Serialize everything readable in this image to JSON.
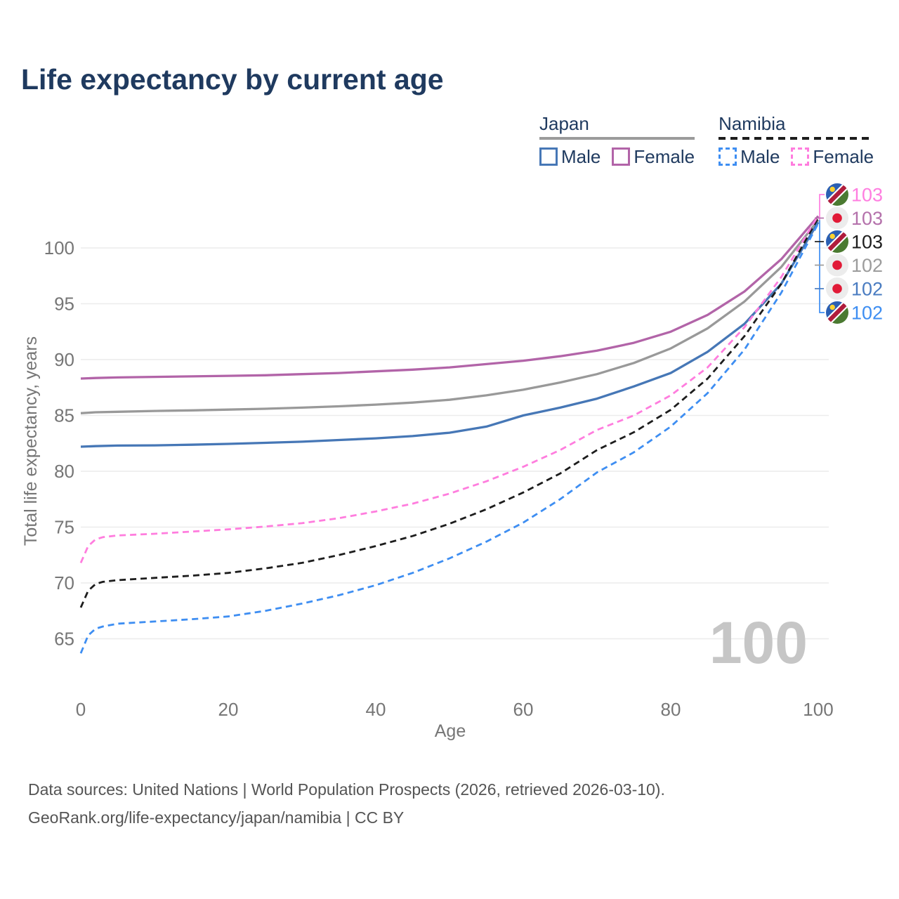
{
  "title": "Life expectancy by current age",
  "legend": {
    "groups": [
      {
        "country": "Japan",
        "underline_color": "#9b9b9b",
        "underline_dashed": false,
        "items": [
          {
            "label": "Male",
            "color": "#4677b6",
            "dashed": false
          },
          {
            "label": "Female",
            "color": "#b264a8",
            "dashed": false
          }
        ]
      },
      {
        "country": "Namibia",
        "underline_color": "#1d1d1d",
        "underline_dashed": true,
        "items": [
          {
            "label": "Male",
            "color": "#3e8ef2",
            "dashed": true
          },
          {
            "label": "Female",
            "color": "#ff7dde",
            "dashed": true
          }
        ]
      }
    ]
  },
  "chart_data": {
    "type": "line",
    "title": "Life expectancy by current age",
    "xlabel": "Age",
    "ylabel": "Total life expectancy, years",
    "xlim": [
      0,
      100
    ],
    "ylim": [
      62,
      104
    ],
    "x_ticks": [
      0,
      20,
      40,
      60,
      80,
      100
    ],
    "y_ticks": [
      65,
      70,
      75,
      80,
      85,
      90,
      95,
      100
    ],
    "grid": "horizontal",
    "legend_position": "top-right",
    "frame_label": "100",
    "converge_value": 102.5,
    "series": [
      {
        "name": "Japan Both sexes",
        "country": "Japan",
        "group": "Both sexes",
        "color": "#999999",
        "dashed": false,
        "points": [
          [
            0,
            85.2
          ],
          [
            2,
            85.28
          ],
          [
            5,
            85.33
          ],
          [
            10,
            85.4
          ],
          [
            15,
            85.45
          ],
          [
            20,
            85.52
          ],
          [
            25,
            85.6
          ],
          [
            30,
            85.7
          ],
          [
            35,
            85.82
          ],
          [
            40,
            85.97
          ],
          [
            45,
            86.15
          ],
          [
            50,
            86.4
          ],
          [
            55,
            86.8
          ],
          [
            60,
            87.3
          ],
          [
            65,
            87.95
          ],
          [
            70,
            88.7
          ],
          [
            75,
            89.7
          ],
          [
            80,
            91.0
          ],
          [
            85,
            92.8
          ],
          [
            90,
            95.2
          ],
          [
            95,
            98.3
          ],
          [
            100,
            102.5
          ]
        ]
      },
      {
        "name": "Japan Female",
        "country": "Japan",
        "group": "Female",
        "color": "#b264a8",
        "dashed": false,
        "points": [
          [
            0,
            88.3
          ],
          [
            2,
            88.35
          ],
          [
            5,
            88.4
          ],
          [
            10,
            88.45
          ],
          [
            15,
            88.5
          ],
          [
            20,
            88.55
          ],
          [
            25,
            88.6
          ],
          [
            30,
            88.7
          ],
          [
            35,
            88.8
          ],
          [
            40,
            88.95
          ],
          [
            45,
            89.1
          ],
          [
            50,
            89.3
          ],
          [
            55,
            89.6
          ],
          [
            60,
            89.9
          ],
          [
            65,
            90.3
          ],
          [
            70,
            90.8
          ],
          [
            75,
            91.5
          ],
          [
            80,
            92.5
          ],
          [
            85,
            94.0
          ],
          [
            90,
            96.1
          ],
          [
            95,
            99.0
          ],
          [
            100,
            102.85
          ]
        ]
      },
      {
        "name": "Japan Male",
        "country": "Japan",
        "group": "Male",
        "color": "#4677b6",
        "dashed": false,
        "points": [
          [
            0,
            82.2
          ],
          [
            2,
            82.25
          ],
          [
            5,
            82.3
          ],
          [
            10,
            82.32
          ],
          [
            15,
            82.38
          ],
          [
            20,
            82.45
          ],
          [
            25,
            82.55
          ],
          [
            30,
            82.65
          ],
          [
            35,
            82.8
          ],
          [
            40,
            82.95
          ],
          [
            45,
            83.15
          ],
          [
            50,
            83.45
          ],
          [
            55,
            84.0
          ],
          [
            60,
            85.0
          ],
          [
            65,
            85.7
          ],
          [
            70,
            86.5
          ],
          [
            75,
            87.6
          ],
          [
            80,
            88.8
          ],
          [
            85,
            90.7
          ],
          [
            90,
            93.2
          ],
          [
            95,
            96.8
          ],
          [
            100,
            102.3
          ]
        ]
      },
      {
        "name": "Namibia Male",
        "country": "Namibia",
        "group": "Male",
        "color": "#3e8ef2",
        "dashed": true,
        "points": [
          [
            0,
            63.7
          ],
          [
            1,
            65.3
          ],
          [
            2,
            65.9
          ],
          [
            3,
            66.1
          ],
          [
            5,
            66.35
          ],
          [
            10,
            66.55
          ],
          [
            15,
            66.75
          ],
          [
            20,
            67.0
          ],
          [
            25,
            67.5
          ],
          [
            30,
            68.15
          ],
          [
            35,
            68.9
          ],
          [
            40,
            69.8
          ],
          [
            45,
            70.9
          ],
          [
            50,
            72.2
          ],
          [
            55,
            73.7
          ],
          [
            60,
            75.4
          ],
          [
            65,
            77.5
          ],
          [
            70,
            79.9
          ],
          [
            75,
            81.7
          ],
          [
            80,
            84.0
          ],
          [
            85,
            87.0
          ],
          [
            90,
            90.9
          ],
          [
            95,
            96.0
          ],
          [
            100,
            102.2
          ]
        ]
      },
      {
        "name": "Namibia Both sexes",
        "country": "Namibia",
        "group": "Both sexes",
        "color": "#1d1d1d",
        "dashed": true,
        "points": [
          [
            0,
            67.8
          ],
          [
            1,
            69.3
          ],
          [
            2,
            69.9
          ],
          [
            3,
            70.1
          ],
          [
            5,
            70.25
          ],
          [
            10,
            70.45
          ],
          [
            15,
            70.65
          ],
          [
            20,
            70.9
          ],
          [
            25,
            71.3
          ],
          [
            30,
            71.8
          ],
          [
            35,
            72.5
          ],
          [
            40,
            73.3
          ],
          [
            45,
            74.2
          ],
          [
            50,
            75.3
          ],
          [
            55,
            76.6
          ],
          [
            60,
            78.1
          ],
          [
            65,
            79.8
          ],
          [
            70,
            81.9
          ],
          [
            75,
            83.5
          ],
          [
            80,
            85.5
          ],
          [
            85,
            88.3
          ],
          [
            90,
            92.1
          ],
          [
            95,
            96.8
          ],
          [
            100,
            102.7
          ]
        ]
      },
      {
        "name": "Namibia Female",
        "country": "Namibia",
        "group": "Female",
        "color": "#ff7dde",
        "dashed": true,
        "points": [
          [
            0,
            71.8
          ],
          [
            1,
            73.3
          ],
          [
            2,
            73.9
          ],
          [
            3,
            74.1
          ],
          [
            5,
            74.25
          ],
          [
            10,
            74.4
          ],
          [
            15,
            74.6
          ],
          [
            20,
            74.8
          ],
          [
            25,
            75.05
          ],
          [
            30,
            75.35
          ],
          [
            35,
            75.8
          ],
          [
            40,
            76.4
          ],
          [
            45,
            77.1
          ],
          [
            50,
            78.0
          ],
          [
            55,
            79.1
          ],
          [
            60,
            80.4
          ],
          [
            65,
            81.9
          ],
          [
            70,
            83.7
          ],
          [
            75,
            85.0
          ],
          [
            80,
            86.8
          ],
          [
            85,
            89.3
          ],
          [
            90,
            92.9
          ],
          [
            95,
            97.4
          ],
          [
            100,
            102.9
          ]
        ]
      }
    ],
    "end_labels": [
      {
        "value": "103",
        "flag": "namibia",
        "color": "#ff7ee0",
        "series": "Namibia Female"
      },
      {
        "value": "103",
        "flag": "japan",
        "color": "#b471ab",
        "series": "Japan Female"
      },
      {
        "value": "103",
        "flag": "namibia",
        "color": "#1d1d1d",
        "series": "Namibia Both sexes"
      },
      {
        "value": "102",
        "flag": "japan",
        "color": "#9c9c9c",
        "series": "Japan Both sexes"
      },
      {
        "value": "102",
        "flag": "japan",
        "color": "#4a7cc1",
        "series": "Japan Male"
      },
      {
        "value": "102",
        "flag": "namibia",
        "color": "#3e8ef2",
        "series": "Namibia Male"
      }
    ],
    "flag_colors": {
      "japan_bg": "#ececec",
      "japan_sun": "#e11a37",
      "namibia_blue": "#2b5fb3",
      "namibia_green": "#4b7a31",
      "namibia_red": "#b01c3c",
      "namibia_white": "#ffffff",
      "namibia_sun": "#ffd22e"
    }
  },
  "footer": {
    "line1": "Data sources: United Nations | World Population Prospects (2026, retrieved 2026-03-10).",
    "line2": "GeoRank.org/life-expectancy/japan/namibia | CC BY"
  }
}
